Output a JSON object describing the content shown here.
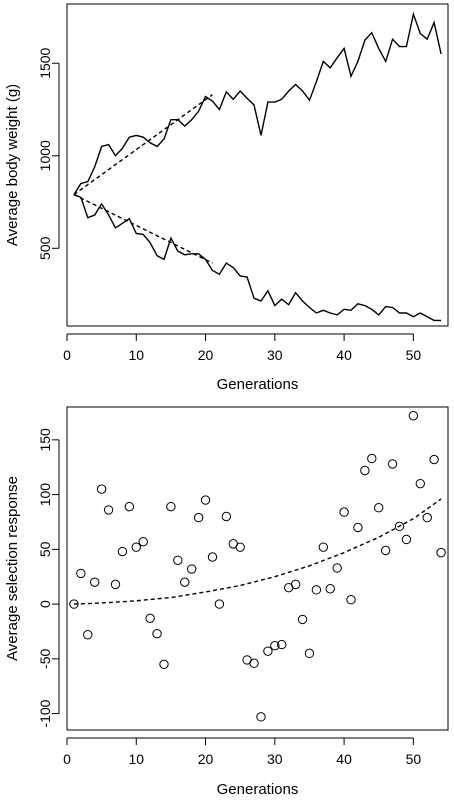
{
  "chart_data": [
    {
      "type": "line",
      "title": "",
      "xlabel": "Generations",
      "ylabel": "Average body weight (g)",
      "xlim": [
        0,
        55
      ],
      "ylim": [
        80,
        1820
      ],
      "xticks": [
        0,
        10,
        20,
        30,
        40,
        50
      ],
      "yticks": [
        500,
        1000,
        1500
      ],
      "grid": false,
      "legend": "none",
      "x": [
        1,
        2,
        3,
        4,
        5,
        6,
        7,
        8,
        9,
        10,
        11,
        12,
        13,
        14,
        15,
        16,
        17,
        18,
        19,
        20,
        21,
        22,
        23,
        24,
        25,
        26,
        27,
        28,
        29,
        30,
        31,
        32,
        33,
        34,
        35,
        36,
        37,
        38,
        39,
        40,
        41,
        42,
        43,
        44,
        45,
        46,
        47,
        48,
        49,
        50,
        51,
        52,
        53,
        54
      ],
      "series": [
        {
          "name": "",
          "style": "solid",
          "values": [
            790,
            850,
            860,
            940,
            1050,
            1060,
            1000,
            1040,
            1100,
            1110,
            1100,
            1070,
            1050,
            1090,
            1195,
            1195,
            1160,
            1195,
            1240,
            1320,
            1295,
            1250,
            1345,
            1305,
            1350,
            1310,
            1275,
            1110,
            1290,
            1290,
            1305,
            1350,
            1385,
            1350,
            1300,
            1400,
            1510,
            1475,
            1530,
            1580,
            1430,
            1510,
            1625,
            1665,
            1580,
            1510,
            1630,
            1590,
            1590,
            1765,
            1660,
            1630,
            1720,
            1550
          ]
        },
        {
          "name": "",
          "style": "solid",
          "values": [
            790,
            775,
            665,
            680,
            740,
            680,
            610,
            635,
            660,
            580,
            575,
            530,
            460,
            440,
            555,
            485,
            465,
            470,
            470,
            440,
            380,
            360,
            420,
            395,
            350,
            345,
            230,
            215,
            270,
            190,
            225,
            195,
            260,
            215,
            180,
            150,
            165,
            150,
            140,
            170,
            165,
            200,
            190,
            170,
            140,
            185,
            180,
            150,
            150,
            130,
            150,
            130,
            110,
            110
          ]
        },
        {
          "name": "",
          "style": "dashed",
          "x": [
            1,
            21
          ],
          "values": [
            790,
            1330
          ]
        },
        {
          "name": "",
          "style": "dashed",
          "x": [
            1,
            21
          ],
          "values": [
            790,
            420
          ]
        }
      ]
    },
    {
      "type": "scatter",
      "title": "",
      "xlabel": "Generations",
      "ylabel": "Average selection response",
      "xlim": [
        0,
        55
      ],
      "ylim": [
        -115,
        180
      ],
      "xticks": [
        0,
        10,
        20,
        30,
        40,
        50
      ],
      "yticks": [
        -100,
        -50,
        0,
        50,
        100,
        150
      ],
      "grid": false,
      "legend": "none",
      "series": [
        {
          "name": "",
          "style": "open-circle",
          "x": [
            1,
            2,
            3,
            4,
            5,
            6,
            7,
            8,
            9,
            10,
            11,
            12,
            13,
            14,
            15,
            16,
            17,
            18,
            19,
            20,
            21,
            22,
            23,
            24,
            25,
            26,
            27,
            28,
            29,
            30,
            31,
            32,
            33,
            34,
            35,
            36,
            37,
            38,
            39,
            40,
            41,
            42,
            43,
            44,
            45,
            46,
            47,
            48,
            49,
            50,
            51,
            52,
            53,
            54
          ],
          "values": [
            0,
            28,
            -28,
            20,
            105,
            86,
            18,
            48,
            89,
            52,
            57,
            -13,
            -27,
            -55,
            89,
            40,
            20,
            32,
            79,
            95,
            43,
            0,
            80,
            55,
            52,
            -51,
            -54,
            -103,
            -43,
            -38,
            -37,
            15,
            18,
            -14,
            -45,
            13,
            52,
            14,
            33,
            84,
            4,
            70,
            122,
            133,
            88,
            49,
            128,
            71,
            59,
            172,
            110,
            79,
            132,
            47
          ]
        },
        {
          "name": "",
          "style": "dashed-curve",
          "x": [
            1,
            5,
            10,
            15,
            20,
            25,
            30,
            35,
            40,
            45,
            50,
            54
          ],
          "values": [
            0,
            1,
            3,
            6,
            11,
            17,
            25,
            35,
            47,
            61,
            78,
            96
          ]
        }
      ]
    }
  ]
}
